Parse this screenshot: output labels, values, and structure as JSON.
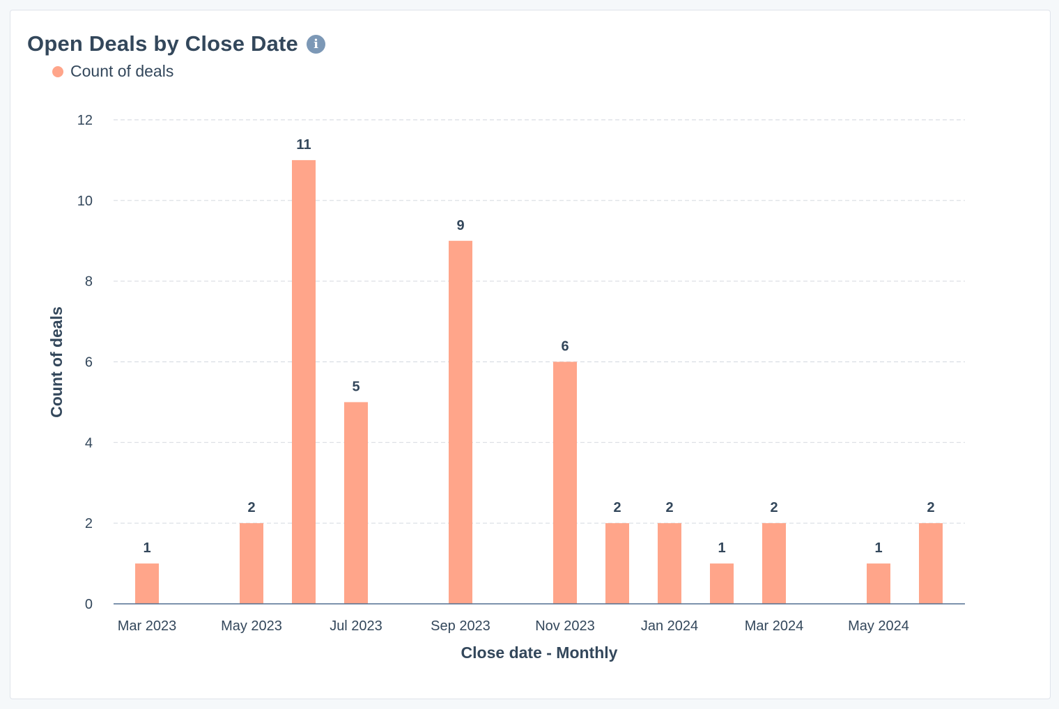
{
  "card": {
    "title": "Open Deals by Close Date",
    "info_icon": "info-icon"
  },
  "chart_data": {
    "type": "bar",
    "categories": [
      "Mar 2023",
      "Apr 2023",
      "May 2023",
      "Jun 2023",
      "Jul 2023",
      "Aug 2023",
      "Sep 2023",
      "Oct 2023",
      "Nov 2023",
      "Dec 2023",
      "Jan 2024",
      "Feb 2024",
      "Mar 2024",
      "Apr 2024",
      "May 2024",
      "Jun 2024"
    ],
    "tick_labels": [
      "Mar 2023",
      "May 2023",
      "Jul 2023",
      "Sep 2023",
      "Nov 2023",
      "Jan 2024",
      "Mar 2024",
      "May 2024"
    ],
    "series": [
      {
        "name": "Count of deals",
        "color": "#ffa58a",
        "values": [
          1,
          0,
          2,
          11,
          5,
          0,
          9,
          0,
          6,
          2,
          2,
          1,
          2,
          0,
          1,
          2
        ]
      }
    ],
    "xlabel": "Close date - Monthly",
    "ylabel": "Count of deals",
    "ylim": [
      0,
      12
    ],
    "yticks": [
      0,
      2,
      4,
      6,
      8,
      10,
      12
    ],
    "grid": true,
    "legend": "top-left"
  }
}
